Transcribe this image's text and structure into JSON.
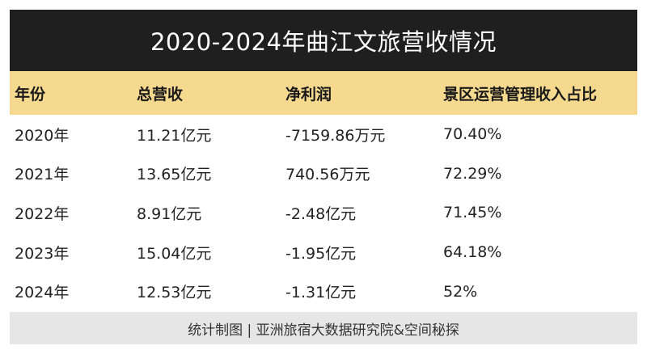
{
  "title": "2020-2024年曲江文旅营收情况",
  "header": {
    "year": "年份",
    "revenue": "总营收",
    "net_profit": "净利润",
    "scenic_share": "景区运营管理收入占比"
  },
  "rows": [
    {
      "year": "2020年",
      "revenue": "11.21亿元",
      "net_profit": "-7159.86万元",
      "scenic_share": "70.40%"
    },
    {
      "year": "2021年",
      "revenue": "13.65亿元",
      "net_profit": "740.56万元",
      "scenic_share": "72.29%"
    },
    {
      "year": "2022年",
      "revenue": "8.91亿元",
      "net_profit": "-2.48亿元",
      "scenic_share": "71.45%"
    },
    {
      "year": "2023年",
      "revenue": "15.04亿元",
      "net_profit": "-1.95亿元",
      "scenic_share": "64.18%"
    },
    {
      "year": "2024年",
      "revenue": "12.53亿元",
      "net_profit": "-1.31亿元",
      "scenic_share": "52%"
    }
  ],
  "footer": "统计制图 | 亚洲旅宿大数据研究院&空间秘探",
  "colors": {
    "title_bar": "#1f1f1f",
    "header_row": "#f5d98f",
    "footer_bar": "#e6e6e6"
  }
}
